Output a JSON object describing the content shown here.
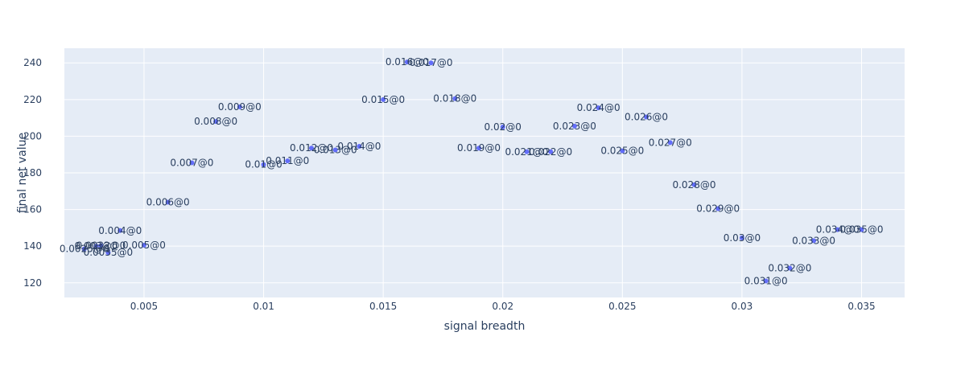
{
  "chart_data": {
    "type": "scatter",
    "title": "",
    "xlabel": "signal breadth",
    "ylabel": "final net value",
    "xlim": [
      0.00167,
      0.0368
    ],
    "ylim": [
      112,
      248
    ],
    "grid": true,
    "legend": "none",
    "x_ticks": [
      0.005,
      0.01,
      0.015,
      0.02,
      0.025,
      0.03,
      0.035
    ],
    "x_tick_labels": [
      "0.005",
      "0.01",
      "0.015",
      "0.02",
      "0.025",
      "0.03",
      "0.035"
    ],
    "y_ticks": [
      120,
      140,
      160,
      180,
      200,
      220,
      240
    ],
    "y_tick_labels": [
      "120",
      "140",
      "160",
      "180",
      "200",
      "220",
      "240"
    ],
    "colors": {
      "plot_bg": "#e5ecf6",
      "grid": "#ffffff",
      "marker": "#636efa",
      "text": "#2a3f5f"
    },
    "points": [
      {
        "x": 0.0025,
        "y": 138.5,
        "label": "0.0025@0"
      },
      {
        "x": 0.003,
        "y": 140.0,
        "label": "0.003@0"
      },
      {
        "x": 0.0032,
        "y": 140.3,
        "label": "0.0032@0"
      },
      {
        "x": 0.0035,
        "y": 136.5,
        "label": "0.0035@0"
      },
      {
        "x": 0.004,
        "y": 148.5,
        "label": "0.004@0"
      },
      {
        "x": 0.005,
        "y": 140.5,
        "label": "0.005@0"
      },
      {
        "x": 0.006,
        "y": 164.0,
        "label": "0.006@0"
      },
      {
        "x": 0.007,
        "y": 185.5,
        "label": "0.007@0"
      },
      {
        "x": 0.008,
        "y": 208.0,
        "label": "0.008@0"
      },
      {
        "x": 0.009,
        "y": 216.0,
        "label": "0.009@0"
      },
      {
        "x": 0.01,
        "y": 184.5,
        "label": "0.01@0"
      },
      {
        "x": 0.011,
        "y": 186.5,
        "label": "0.011@0"
      },
      {
        "x": 0.012,
        "y": 193.5,
        "label": "0.012@0"
      },
      {
        "x": 0.013,
        "y": 192.5,
        "label": "0.013@0"
      },
      {
        "x": 0.014,
        "y": 194.5,
        "label": "0.014@0"
      },
      {
        "x": 0.015,
        "y": 220.0,
        "label": "0.015@0"
      },
      {
        "x": 0.016,
        "y": 240.5,
        "label": "0.016@0"
      },
      {
        "x": 0.017,
        "y": 240.0,
        "label": "0.017@0"
      },
      {
        "x": 0.018,
        "y": 220.5,
        "label": "0.018@0"
      },
      {
        "x": 0.019,
        "y": 193.5,
        "label": "0.019@0"
      },
      {
        "x": 0.02,
        "y": 205.0,
        "label": "0.02@0"
      },
      {
        "x": 0.021,
        "y": 191.5,
        "label": "0.021@0"
      },
      {
        "x": 0.022,
        "y": 191.5,
        "label": "0.022@0"
      },
      {
        "x": 0.023,
        "y": 205.5,
        "label": "0.023@0"
      },
      {
        "x": 0.024,
        "y": 215.5,
        "label": "0.024@0"
      },
      {
        "x": 0.025,
        "y": 192.0,
        "label": "0.025@0"
      },
      {
        "x": 0.026,
        "y": 210.5,
        "label": "0.026@0"
      },
      {
        "x": 0.027,
        "y": 196.5,
        "label": "0.027@0"
      },
      {
        "x": 0.028,
        "y": 173.5,
        "label": "0.028@0"
      },
      {
        "x": 0.029,
        "y": 160.5,
        "label": "0.029@0"
      },
      {
        "x": 0.03,
        "y": 144.5,
        "label": "0.03@0"
      },
      {
        "x": 0.031,
        "y": 121.0,
        "label": "0.031@0"
      },
      {
        "x": 0.032,
        "y": 128.0,
        "label": "0.032@0"
      },
      {
        "x": 0.033,
        "y": 143.0,
        "label": "0.033@0"
      },
      {
        "x": 0.034,
        "y": 149.0,
        "label": "0.034@0"
      },
      {
        "x": 0.035,
        "y": 149.0,
        "label": "0.035@0"
      }
    ]
  }
}
